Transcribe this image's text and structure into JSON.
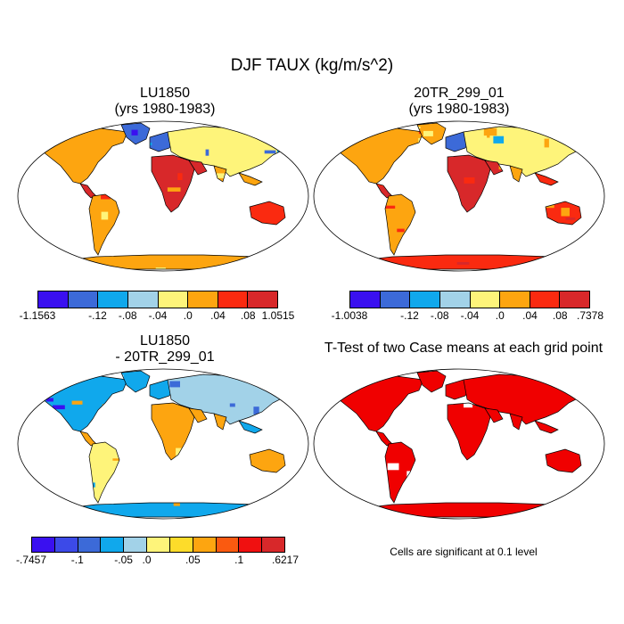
{
  "title": "DJF TAUX (kg/m/s^2)",
  "panels": [
    {
      "id": "p1",
      "line1": "LU1850",
      "line2": "(yrs 1980-1983)",
      "style": "field_a",
      "colorbar": {
        "colors": [
          "#3a10f0",
          "#3c6ad8",
          "#10a8ec",
          "#a2d2e8",
          "#fef47a",
          "#fda510",
          "#fa2a10",
          "#d8282a"
        ],
        "labels": [
          "-1.1563",
          "-.12",
          "-.08",
          "-.04",
          ".0",
          ".04",
          ".08",
          "1.0515"
        ]
      }
    },
    {
      "id": "p2",
      "line1": "20TR_299_01",
      "line2": "(yrs 1980-1983)",
      "style": "field_b",
      "colorbar": {
        "colors": [
          "#3a10f0",
          "#3c6ad8",
          "#10a8ec",
          "#a2d2e8",
          "#fef47a",
          "#fda510",
          "#fa2a10",
          "#d8282a"
        ],
        "labels": [
          "-1.0038",
          "-.12",
          "-.08",
          "-.04",
          ".0",
          ".04",
          ".08",
          ".7378"
        ]
      }
    },
    {
      "id": "p3",
      "line1": "LU1850",
      "line2": "- 20TR_299_01",
      "style": "diff",
      "colorbar": {
        "colors": [
          "#3a10f0",
          "#3c4ae8",
          "#3c6ad8",
          "#10a8ec",
          "#a2d2e8",
          "#fef47a",
          "#fddc2a",
          "#fda510",
          "#fa5a10",
          "#f01010",
          "#d8282a"
        ],
        "labels": [
          "-.7457",
          "-.1",
          "-.05",
          ".0",
          ".05",
          ".1",
          ".6217"
        ]
      }
    },
    {
      "id": "p4",
      "line1": "T-Test of two Case means at each grid point",
      "line2": "",
      "style": "ttest",
      "note": "Cells are significant at 0.1 level"
    }
  ],
  "colors": {
    "land_outline": "#000000",
    "significant": "#f00000",
    "ocean": "#ffffff"
  }
}
